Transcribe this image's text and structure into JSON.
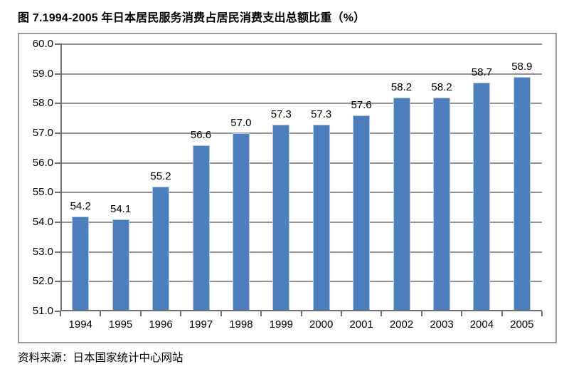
{
  "title": "图 7.1994-2005 年日本居民服务消费占居民消费支出总额比重（%）",
  "source": "资料来源：日本国家统计中心网站",
  "chart_data": {
    "type": "bar",
    "title": "图 7.1994-2005 年日本居民服务消费占居民消费支出总额比重（%）",
    "categories": [
      "1994",
      "1995",
      "1996",
      "1997",
      "1998",
      "1999",
      "2000",
      "2001",
      "2002",
      "2003",
      "2004",
      "2005"
    ],
    "values": [
      54.2,
      54.1,
      55.2,
      56.6,
      57.0,
      57.3,
      57.3,
      57.6,
      58.2,
      58.2,
      58.7,
      58.9
    ],
    "value_labels": [
      "54.2",
      "54.1",
      "55.2",
      "56.6",
      "57.0",
      "57.3",
      "57.3",
      "57.6",
      "58.2",
      "58.2",
      "58.7",
      "58.9"
    ],
    "xlabel": "",
    "ylabel": "",
    "ylim": [
      51.0,
      60.0
    ],
    "ytick_step": 1.0,
    "ytick_labels": [
      "60.0",
      "59.0",
      "58.0",
      "57.0",
      "56.0",
      "55.0",
      "54.0",
      "53.0",
      "52.0",
      "51.0"
    ],
    "grid": true,
    "legend": false,
    "colors": {
      "bar_fill": "#4c7ebd",
      "bar_border": "#b3c9e4",
      "gridline": "#919191",
      "axis": "#6e6e6e",
      "frame_border": "#9b9b9b",
      "text": "#000000"
    }
  }
}
